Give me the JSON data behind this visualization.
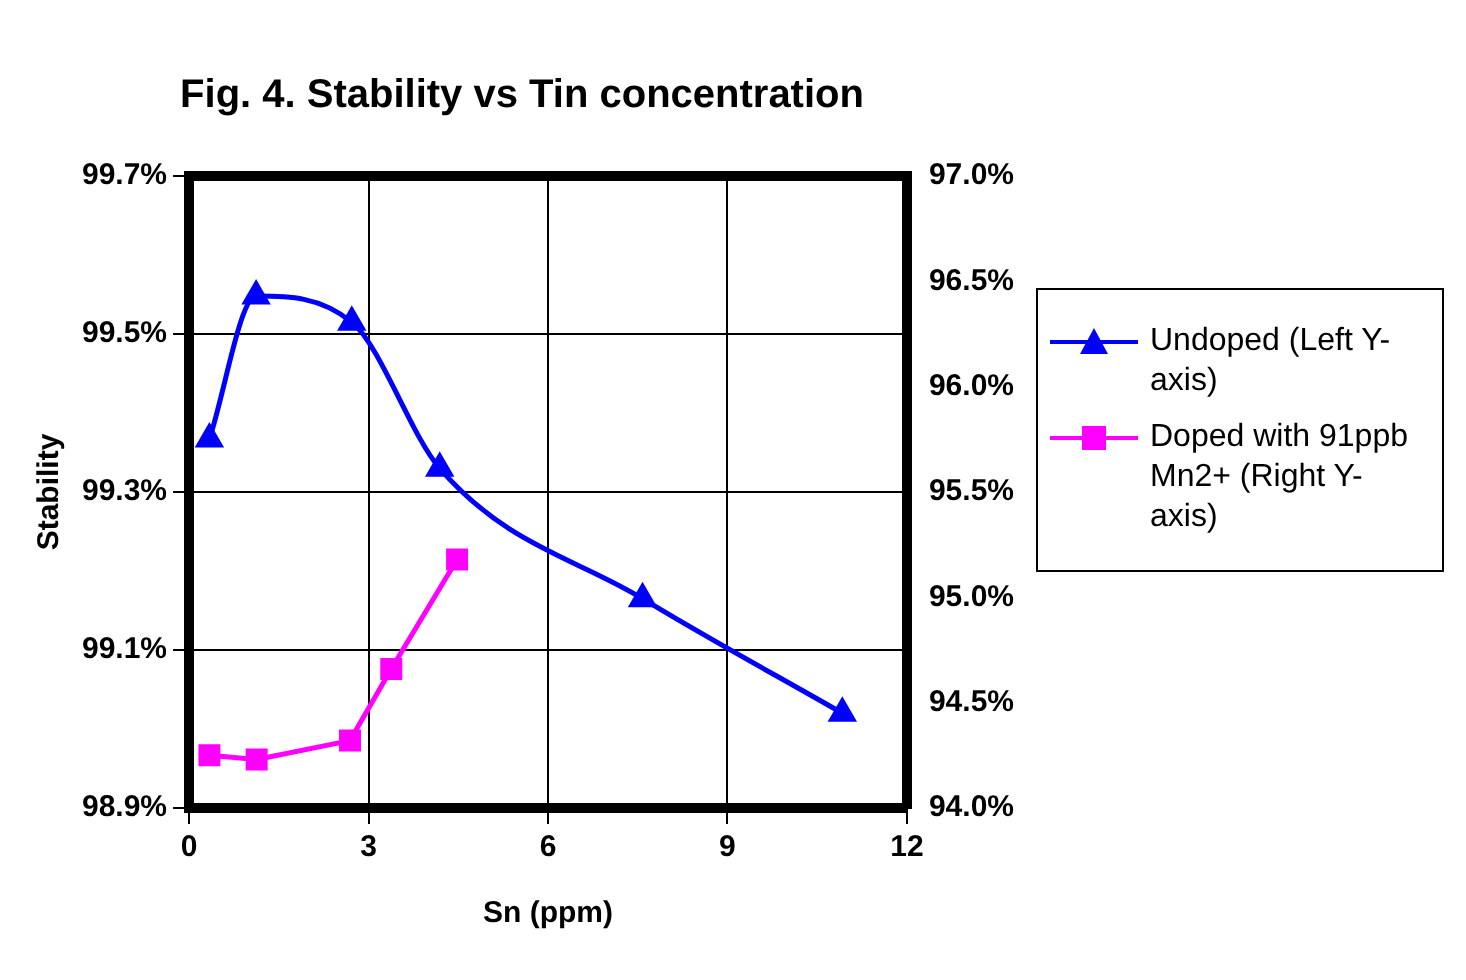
{
  "chart_data": {
    "type": "line",
    "title": "Fig. 4. Stability vs Tin concentration",
    "xlabel": "Sn (ppm)",
    "ylabel": "Stability",
    "series": [
      {
        "name": "Undoped (Left Y-axis)",
        "color": "#0000ff",
        "marker": "triangle",
        "x": [
          0.34,
          1.12,
          2.72,
          4.19,
          7.58,
          10.92
        ],
        "values": [
          99.367,
          99.548,
          99.515,
          99.33,
          99.165,
          99.02
        ]
      },
      {
        "name": "Doped with 91ppb Mn2+ (Right Y-axis)",
        "color": "#ff00ff",
        "marker": "square",
        "axis": "y2",
        "x": [
          0.34,
          1.13,
          2.69,
          3.38,
          4.48
        ],
        "values": [
          94.25,
          94.23,
          94.32,
          94.66,
          95.18
        ]
      }
    ],
    "xlim": [
      0,
      12
    ],
    "xticks": [
      0,
      3,
      6,
      9,
      12
    ],
    "ylim": [
      98.9,
      99.7
    ],
    "yticks": [
      {
        "value": 98.9,
        "label": "98.9%"
      },
      {
        "value": 99.1,
        "label": "99.1%"
      },
      {
        "value": 99.3,
        "label": "99.3%"
      },
      {
        "value": 99.5,
        "label": "99.5%"
      },
      {
        "value": 99.7,
        "label": "99.7%"
      }
    ],
    "y2lim": [
      94,
      97
    ],
    "y2ticks": [
      {
        "value": 94,
        "label": "94.0%"
      },
      {
        "value": 94.5,
        "label": "94.5%"
      },
      {
        "value": 95,
        "label": "95.0%"
      },
      {
        "value": 95.5,
        "label": "95.5%"
      },
      {
        "value": 96,
        "label": "96.0%"
      },
      {
        "value": 96.5,
        "label": "96.5%"
      },
      {
        "value": 97,
        "label": "97.0%"
      }
    ],
    "grid": true,
    "legend": "right"
  }
}
